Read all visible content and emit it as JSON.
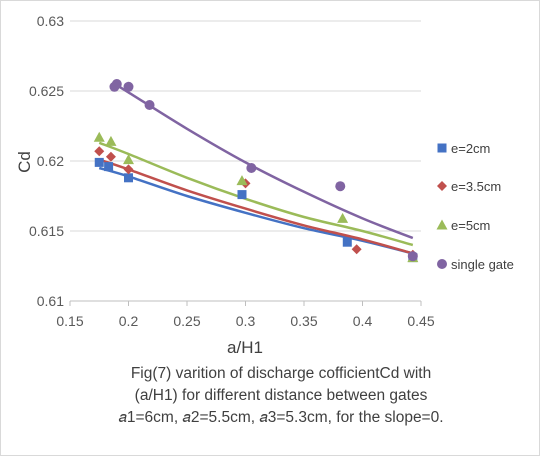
{
  "chart_data": {
    "type": "scatter",
    "xlabel": "a/H1",
    "ylabel": "Cd",
    "xlim": [
      0.15,
      0.45
    ],
    "ylim": [
      0.61,
      0.63
    ],
    "x_ticks": [
      "0.15",
      "0.2",
      "0.25",
      "0.3",
      "0.35",
      "0.4",
      "0.45"
    ],
    "y_ticks": [
      "0.61",
      "0.615",
      "0.62",
      "0.625",
      "0.63"
    ],
    "grid": "horizontal",
    "legend_position": "right",
    "trendlines": "power",
    "series": [
      {
        "name": "e=2cm",
        "color": "#4472c4",
        "marker": "square",
        "points": [
          [
            0.175,
            0.6199
          ],
          [
            0.183,
            0.6196
          ],
          [
            0.2,
            0.6188
          ],
          [
            0.297,
            0.6176
          ],
          [
            0.387,
            0.6142
          ],
          [
            0.443,
            0.6131
          ]
        ],
        "trend": [
          [
            0.175,
            0.6195
          ],
          [
            0.2,
            0.6189
          ],
          [
            0.25,
            0.6175
          ],
          [
            0.3,
            0.6163
          ],
          [
            0.35,
            0.6152
          ],
          [
            0.4,
            0.6143
          ],
          [
            0.443,
            0.6134
          ]
        ]
      },
      {
        "name": "e=3.5cm",
        "color": "#c0504d",
        "marker": "diamond",
        "points": [
          [
            0.175,
            0.6207
          ],
          [
            0.185,
            0.6203
          ],
          [
            0.2,
            0.6194
          ],
          [
            0.3,
            0.6184
          ],
          [
            0.395,
            0.6137
          ],
          [
            0.443,
            0.6133
          ]
        ],
        "trend": [
          [
            0.175,
            0.6201
          ],
          [
            0.2,
            0.6194
          ],
          [
            0.25,
            0.6179
          ],
          [
            0.3,
            0.6166
          ],
          [
            0.35,
            0.6154
          ],
          [
            0.4,
            0.6144
          ],
          [
            0.443,
            0.6134
          ]
        ]
      },
      {
        "name": "e=5cm",
        "color": "#9bbb59",
        "marker": "triangle",
        "points": [
          [
            0.175,
            0.6217
          ],
          [
            0.185,
            0.6214
          ],
          [
            0.2,
            0.6201
          ],
          [
            0.297,
            0.6186
          ],
          [
            0.383,
            0.6159
          ],
          [
            0.443,
            0.6131
          ]
        ],
        "trend": [
          [
            0.175,
            0.6213
          ],
          [
            0.2,
            0.6205
          ],
          [
            0.25,
            0.6188
          ],
          [
            0.3,
            0.6173
          ],
          [
            0.35,
            0.616
          ],
          [
            0.4,
            0.615
          ],
          [
            0.443,
            0.614
          ]
        ]
      },
      {
        "name": "single gate",
        "color": "#8064a2",
        "marker": "circle",
        "points": [
          [
            0.188,
            0.6253
          ],
          [
            0.19,
            0.6255
          ],
          [
            0.2,
            0.6253
          ],
          [
            0.218,
            0.624
          ],
          [
            0.305,
            0.6195
          ],
          [
            0.381,
            0.6182
          ],
          [
            0.443,
            0.6132
          ]
        ],
        "trend": [
          [
            0.188,
            0.6255
          ],
          [
            0.2,
            0.6249
          ],
          [
            0.25,
            0.6223
          ],
          [
            0.3,
            0.6199
          ],
          [
            0.35,
            0.6178
          ],
          [
            0.4,
            0.6159
          ],
          [
            0.443,
            0.6145
          ]
        ]
      }
    ]
  },
  "caption": {
    "line1": "Fig(7) varition of discharge  cofficientCd with",
    "line2": "(a/H1) for different distance between gates",
    "line3": "𝑎1=6cm,  𝑎2=5.5cm, 𝑎3=5.3cm,  for the slope=0."
  }
}
